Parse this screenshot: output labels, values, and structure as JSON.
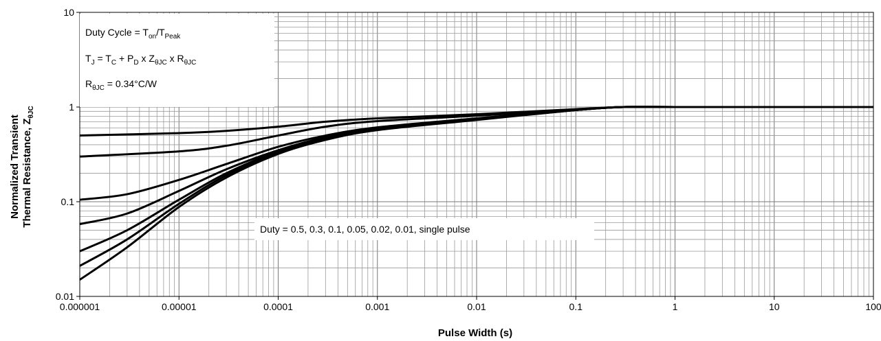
{
  "chart_data": {
    "type": "line",
    "x_scale": "log",
    "y_scale": "log",
    "xlabel": "Pulse Width (s)",
    "ylabel_line1": "Normalized Transient",
    "ylabel_line2": "Thermal Resistance, Z",
    "ylabel_sub": "θJC",
    "xlim": [
      1e-06,
      100
    ],
    "ylim": [
      0.01,
      10
    ],
    "x_ticks": [
      1e-06,
      1e-05,
      0.0001,
      0.001,
      0.01,
      0.1,
      1,
      10,
      100
    ],
    "x_tick_labels": [
      "0.000001",
      "0.00001",
      "0.0001",
      "0.001",
      "0.01",
      "0.1",
      "1",
      "10",
      "100"
    ],
    "y_ticks": [
      0.01,
      0.1,
      1,
      10
    ],
    "y_tick_labels": [
      "0.01",
      "0.1",
      "1",
      "10"
    ],
    "grid": true,
    "info_box": {
      "line1_main": "Duty Cycle = T",
      "line1_sub1": "on",
      "line1_mid": "/T",
      "line1_sub2": "Peak",
      "line2_a": "T",
      "line2_a_sub": "J",
      "line2_b": " = T",
      "line2_b_sub": "C",
      "line2_c": " + P",
      "line2_c_sub": "D",
      "line2_d": " x Z",
      "line2_d_sub": "θJC",
      "line2_e": " x R",
      "line2_e_sub": "θJC",
      "line3_a": "R",
      "line3_a_sub": "θJC",
      "line3_b": " = 0.34°C/W"
    },
    "legend_text": "Duty = 0.5, 0.3, 0.1, 0.05, 0.02, 0.01, single pulse",
    "series": [
      {
        "name": "D=0.5",
        "points": [
          [
            1e-06,
            0.5
          ],
          [
            1e-05,
            0.53
          ],
          [
            3e-05,
            0.56
          ],
          [
            0.0001,
            0.62
          ],
          [
            0.0003,
            0.7
          ],
          [
            0.001,
            0.76
          ],
          [
            0.01,
            0.84
          ],
          [
            0.1,
            0.95
          ],
          [
            0.3,
            1.0
          ],
          [
            1,
            1.0
          ],
          [
            10,
            1.0
          ],
          [
            100,
            1.0
          ]
        ]
      },
      {
        "name": "D=0.3",
        "points": [
          [
            1e-06,
            0.3
          ],
          [
            1e-05,
            0.34
          ],
          [
            3e-05,
            0.39
          ],
          [
            0.0001,
            0.5
          ],
          [
            0.0003,
            0.62
          ],
          [
            0.001,
            0.71
          ],
          [
            0.01,
            0.81
          ],
          [
            0.1,
            0.94
          ],
          [
            0.3,
            1.0
          ],
          [
            1,
            1.0
          ],
          [
            10,
            1.0
          ],
          [
            100,
            1.0
          ]
        ]
      },
      {
        "name": "D=0.1",
        "points": [
          [
            1e-06,
            0.105
          ],
          [
            3e-06,
            0.12
          ],
          [
            1e-05,
            0.17
          ],
          [
            3e-05,
            0.25
          ],
          [
            0.0001,
            0.38
          ],
          [
            0.0003,
            0.5
          ],
          [
            0.001,
            0.61
          ],
          [
            0.01,
            0.76
          ],
          [
            0.1,
            0.93
          ],
          [
            0.3,
            1.0
          ],
          [
            1,
            1.0
          ],
          [
            10,
            1.0
          ],
          [
            100,
            1.0
          ]
        ]
      },
      {
        "name": "D=0.05",
        "points": [
          [
            1e-06,
            0.058
          ],
          [
            3e-06,
            0.075
          ],
          [
            1e-05,
            0.13
          ],
          [
            3e-05,
            0.22
          ],
          [
            0.0001,
            0.35
          ],
          [
            0.0003,
            0.48
          ],
          [
            0.001,
            0.6
          ],
          [
            0.01,
            0.75
          ],
          [
            0.1,
            0.93
          ],
          [
            0.3,
            1.0
          ],
          [
            1,
            1.0
          ],
          [
            10,
            1.0
          ],
          [
            100,
            1.0
          ]
        ]
      },
      {
        "name": "D=0.02",
        "points": [
          [
            1e-06,
            0.03
          ],
          [
            3e-06,
            0.05
          ],
          [
            1e-05,
            0.105
          ],
          [
            3e-05,
            0.2
          ],
          [
            0.0001,
            0.34
          ],
          [
            0.0003,
            0.47
          ],
          [
            0.001,
            0.59
          ],
          [
            0.01,
            0.74
          ],
          [
            0.1,
            0.93
          ],
          [
            0.3,
            1.0
          ],
          [
            1,
            1.0
          ],
          [
            10,
            1.0
          ],
          [
            100,
            1.0
          ]
        ]
      },
      {
        "name": "D=0.01",
        "points": [
          [
            1e-06,
            0.021
          ],
          [
            3e-06,
            0.04
          ],
          [
            1e-05,
            0.095
          ],
          [
            3e-05,
            0.19
          ],
          [
            0.0001,
            0.33
          ],
          [
            0.0003,
            0.46
          ],
          [
            0.001,
            0.58
          ],
          [
            0.01,
            0.74
          ],
          [
            0.1,
            0.93
          ],
          [
            0.3,
            1.0
          ],
          [
            1,
            1.0
          ],
          [
            10,
            1.0
          ],
          [
            100,
            1.0
          ]
        ]
      },
      {
        "name": "single pulse",
        "points": [
          [
            1e-06,
            0.015
          ],
          [
            3e-06,
            0.033
          ],
          [
            1e-05,
            0.088
          ],
          [
            3e-05,
            0.18
          ],
          [
            0.0001,
            0.32
          ],
          [
            0.0003,
            0.45
          ],
          [
            0.001,
            0.57
          ],
          [
            0.01,
            0.73
          ],
          [
            0.1,
            0.93
          ],
          [
            0.3,
            1.0
          ],
          [
            1,
            1.0
          ],
          [
            10,
            1.0
          ],
          [
            100,
            1.0
          ]
        ]
      }
    ]
  }
}
